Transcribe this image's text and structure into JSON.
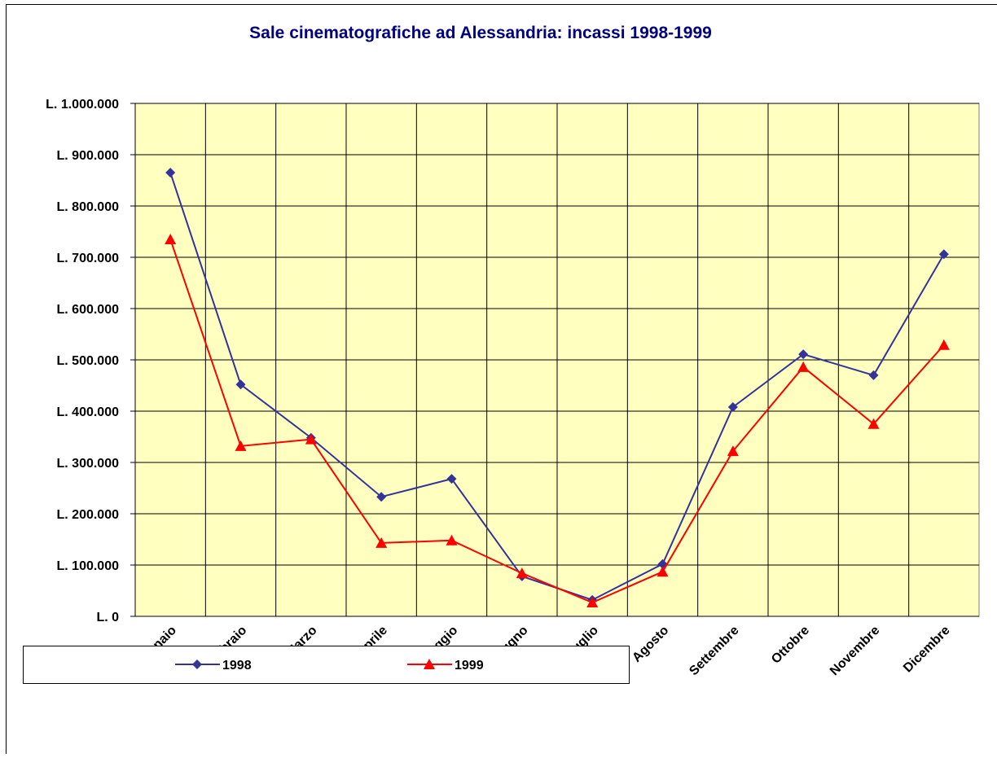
{
  "chart_data": {
    "type": "line",
    "title": "Sale cinematografiche ad Alessandria: incassi 1998-1999",
    "categories": [
      "Gennaio",
      "Febbraio",
      "Marzo",
      "Aprile",
      "Maggio",
      "Giugno",
      "Luglio",
      "Agosto",
      "Settembre",
      "Ottobre",
      "Novembre",
      "Dicembre"
    ],
    "series": [
      {
        "name": "1998",
        "color": "#333399",
        "marker": "diamond",
        "values": [
          865000,
          452000,
          348000,
          233000,
          268000,
          78000,
          32000,
          102000,
          408000,
          511000,
          470000,
          706000
        ]
      },
      {
        "name": "1999",
        "color": "#ff0000",
        "marker": "triangle",
        "values": [
          735000,
          332000,
          345000,
          143000,
          148000,
          84000,
          27000,
          87000,
          322000,
          486000,
          375000,
          529000
        ]
      }
    ],
    "ylim": [
      0,
      1000000
    ],
    "yticks": [
      {
        "value": 0,
        "label": "L. 0"
      },
      {
        "value": 100000,
        "label": "L. 100.000"
      },
      {
        "value": 200000,
        "label": "L. 200.000"
      },
      {
        "value": 300000,
        "label": "L. 300.000"
      },
      {
        "value": 400000,
        "label": "L. 400.000"
      },
      {
        "value": 500000,
        "label": "L. 500.000"
      },
      {
        "value": 600000,
        "label": "L. 600.000"
      },
      {
        "value": 700000,
        "label": "L. 700.000"
      },
      {
        "value": 800000,
        "label": "L. 800.000"
      },
      {
        "value": 900000,
        "label": "L. 900.000"
      },
      {
        "value": 1000000,
        "label": "L. 1.000.000"
      }
    ],
    "grid": true,
    "plot_background": "#ffffc0",
    "legend": "bottom"
  }
}
